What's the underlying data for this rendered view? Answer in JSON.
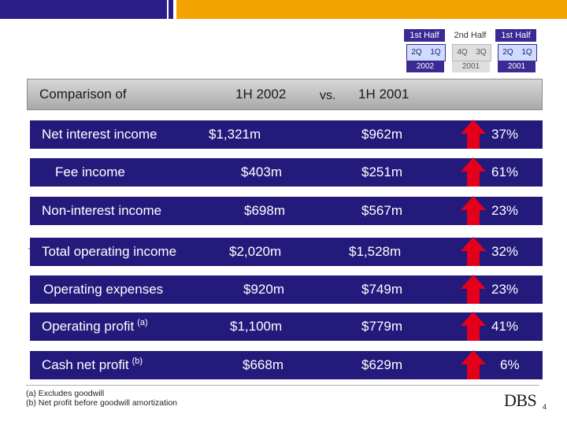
{
  "legend": {
    "groups": [
      {
        "head": "1st Half",
        "cells": [
          "2Q",
          "1Q"
        ],
        "year": "2002",
        "style": "blue"
      },
      {
        "head": "2nd Half",
        "cells": [
          "4Q",
          "3Q"
        ],
        "year": "2001",
        "style": "gray"
      },
      {
        "head": "1st Half",
        "cells": [
          "2Q",
          "1Q"
        ],
        "year": "2001",
        "style": "blue"
      }
    ]
  },
  "header": {
    "comparison": "Comparison of",
    "period1": "1H 2002",
    "vs": "vs.",
    "period2": "1H 2001"
  },
  "rows": [
    {
      "label": "Net interest income",
      "sup": "",
      "v2002": "$1,321m",
      "v2001": "$962m",
      "change": "37%"
    },
    {
      "label": "Fee income",
      "sup": "",
      "v2002": "$403m",
      "v2001": "$251m",
      "change": "61%"
    },
    {
      "label": "Non-interest income",
      "sup": "",
      "v2002": "$698m",
      "v2001": "$567m",
      "change": "23%"
    },
    {
      "label": "Total operating income",
      "sup": "",
      "v2002": "$2,020m",
      "v2001": "$1,528m",
      "change": "32%"
    },
    {
      "label": "Operating expenses",
      "sup": "",
      "v2002": "$920m",
      "v2001": "$749m",
      "change": "23%"
    },
    {
      "label": "Operating profit",
      "sup": "(a)",
      "v2002": "$1,100m",
      "v2001": "$779m",
      "change": "41%"
    },
    {
      "label": "Cash net profit",
      "sup": "(b)",
      "v2002": "$668m",
      "v2001": "$629m",
      "change": "6%"
    }
  ],
  "notes": [
    "(a) Excludes goodwill",
    "(b) Net profit before goodwill amortization"
  ],
  "tick_mark": "`",
  "logo": "DBS",
  "page_number": "4",
  "colors": {
    "row_bg": "#241a7c",
    "arrow": "#e4001b",
    "accent_bar": "#f4a400",
    "brand_blue": "#2a1d86"
  }
}
